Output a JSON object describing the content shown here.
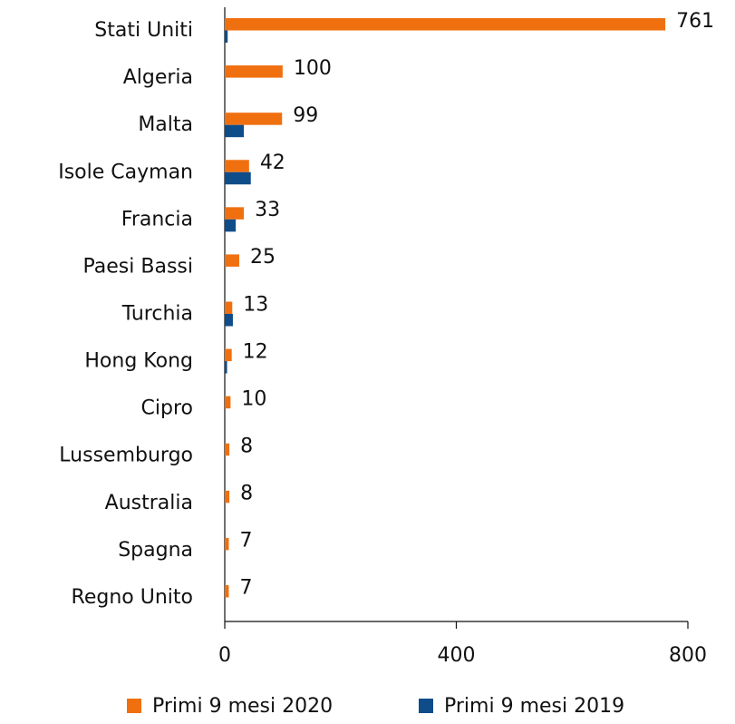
{
  "chart_data": {
    "type": "bar",
    "orientation": "horizontal",
    "categories": [
      "Stati Uniti",
      "Algeria",
      "Malta",
      "Isole Cayman",
      "Francia",
      "Paesi Bassi",
      "Turchia",
      "Hong Kong",
      "Cipro",
      "Lussemburgo",
      "Australia",
      "Spagna",
      "Regno Unito"
    ],
    "series": [
      {
        "name": "Primi 9 mesi 2020",
        "color": "#f07010",
        "values": [
          761,
          100,
          99,
          42,
          33,
          25,
          13,
          12,
          10,
          8,
          8,
          7,
          7
        ],
        "show_labels": true
      },
      {
        "name": "Primi 9 mesi 2019",
        "color": "#0f4c8a",
        "values": [
          5,
          0,
          33,
          45,
          19,
          0,
          14,
          4,
          0,
          0,
          0,
          0,
          0
        ],
        "show_labels": false
      }
    ],
    "xlim": [
      0,
      800
    ],
    "xticks": [
      0,
      400,
      800
    ],
    "legend": "bottom"
  }
}
